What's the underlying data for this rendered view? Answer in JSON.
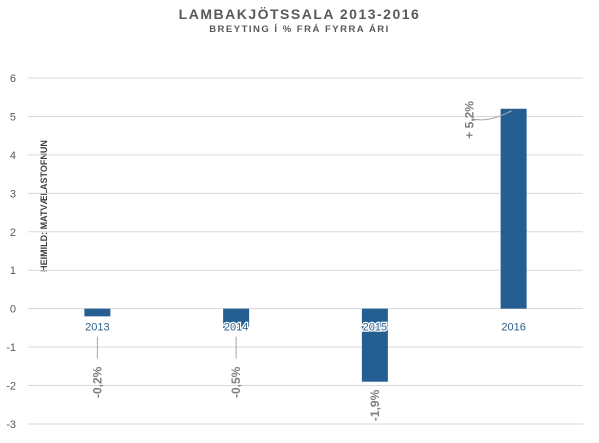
{
  "chart_data": {
    "type": "bar",
    "title": "LAMBAKJÖTSSALA 2013-2016",
    "subtitle": "BREYTING Í % FRÁ FYRRA ÁRI",
    "source": "HEIMILD: MATVÆLASTOFNUN",
    "categories": [
      "2013",
      "2014",
      "2015",
      "2016"
    ],
    "values": [
      -0.2,
      -0.5,
      -1.9,
      5.2
    ],
    "data_labels": [
      "-0,2%",
      "-0,5%",
      "-1,9%",
      "+ 5,2%"
    ],
    "ylim": [
      -3,
      6
    ],
    "yticks": [
      -3,
      -2,
      -1,
      0,
      1,
      2,
      3,
      4,
      5,
      6
    ],
    "grid": true,
    "legend": "none",
    "colors": {
      "bar": "#255E91",
      "grid": "#D9D9D9",
      "tick_text": "#595959",
      "label_text": "#7F7F7F"
    }
  }
}
